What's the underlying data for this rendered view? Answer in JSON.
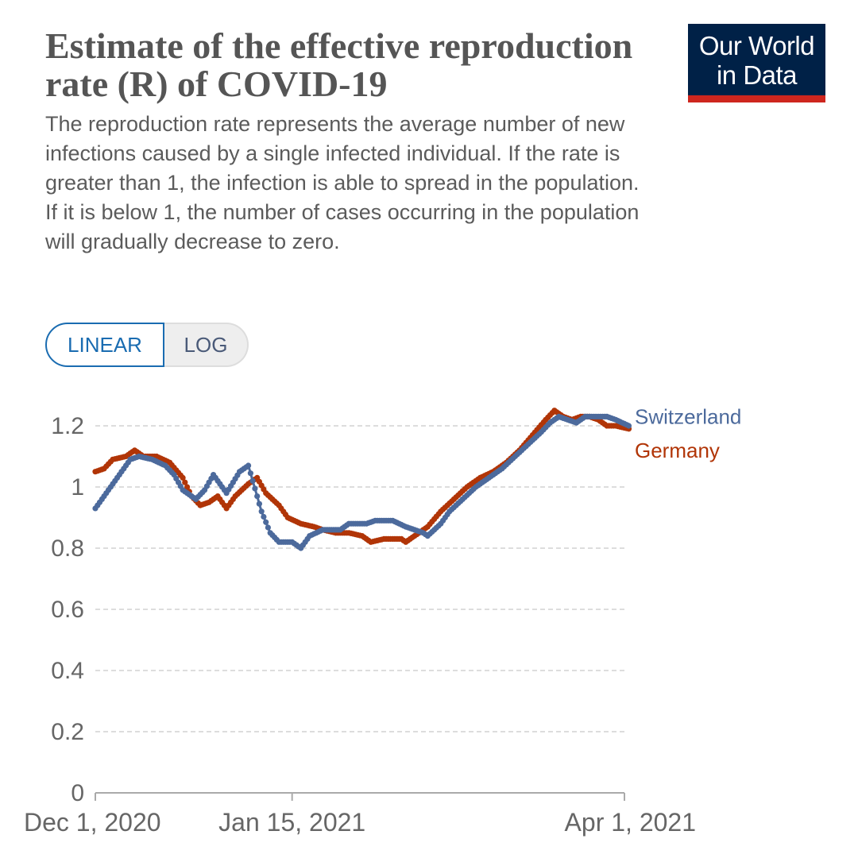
{
  "header": {
    "title": "Estimate of the effective reproduction rate (R) of COVID-19",
    "subtitle": "The reproduction rate represents the average number of new infections caused by a single infected individual. If the rate is greater than 1, the infection is able to spread in the population. If it is below 1, the number of cases occurring in the population will gradually decrease to zero."
  },
  "logo": {
    "line1": "Our World",
    "line2": "in Data"
  },
  "scale_toggle": {
    "linear_label": "LINEAR",
    "log_label": "LOG",
    "selected": "LINEAR"
  },
  "colors": {
    "switzerland": "#4c6a9c",
    "germany": "#b13507",
    "grid": "#dddddd",
    "axis": "#aaaaaa",
    "accent": "#1a6cb1"
  },
  "chart_data": {
    "type": "line",
    "title": "Estimate of the effective reproduction rate (R) of COVID-19",
    "xlabel": "",
    "ylabel": "",
    "ylim": [
      0,
      1.2
    ],
    "yticks": [
      0,
      0.2,
      0.4,
      0.6,
      0.8,
      1,
      1.2
    ],
    "ytick_labels": [
      "0",
      "0.2",
      "0.4",
      "0.6",
      "0.8",
      "1",
      "1.2"
    ],
    "xlim_days": [
      0,
      121
    ],
    "xticks": [
      {
        "day": 0,
        "label": "Dec 1, 2020"
      },
      {
        "day": 45,
        "label": "Jan 15, 2021"
      },
      {
        "day": 121,
        "label": "Apr 1, 2021"
      }
    ],
    "grid": true,
    "series": [
      {
        "name": "Switzerland",
        "label_y": 1.23,
        "points": [
          [
            0,
            0.93
          ],
          [
            2,
            0.97
          ],
          [
            5,
            1.03
          ],
          [
            8,
            1.09
          ],
          [
            10,
            1.1
          ],
          [
            13,
            1.09
          ],
          [
            16,
            1.07
          ],
          [
            18,
            1.04
          ],
          [
            20,
            0.99
          ],
          [
            23,
            0.96
          ],
          [
            25,
            0.99
          ],
          [
            27,
            1.04
          ],
          [
            29,
            1.0
          ],
          [
            30,
            0.98
          ],
          [
            33,
            1.05
          ],
          [
            35,
            1.07
          ],
          [
            36,
            1.02
          ],
          [
            38,
            0.92
          ],
          [
            40,
            0.85
          ],
          [
            42,
            0.82
          ],
          [
            45,
            0.82
          ],
          [
            47,
            0.8
          ],
          [
            49,
            0.84
          ],
          [
            52,
            0.86
          ],
          [
            56,
            0.86
          ],
          [
            58,
            0.88
          ],
          [
            62,
            0.88
          ],
          [
            64,
            0.89
          ],
          [
            68,
            0.89
          ],
          [
            71,
            0.87
          ],
          [
            73,
            0.86
          ],
          [
            75,
            0.85
          ],
          [
            76,
            0.84
          ],
          [
            79,
            0.88
          ],
          [
            81,
            0.92
          ],
          [
            84,
            0.96
          ],
          [
            87,
            1.0
          ],
          [
            90,
            1.03
          ],
          [
            93,
            1.06
          ],
          [
            96,
            1.1
          ],
          [
            99,
            1.14
          ],
          [
            102,
            1.18
          ],
          [
            104,
            1.21
          ],
          [
            106,
            1.23
          ],
          [
            108,
            1.22
          ],
          [
            110,
            1.21
          ],
          [
            112,
            1.23
          ],
          [
            114,
            1.23
          ],
          [
            117,
            1.23
          ],
          [
            119,
            1.22
          ],
          [
            122,
            1.2
          ]
        ]
      },
      {
        "name": "Germany",
        "label_y": 1.12,
        "points": [
          [
            0,
            1.05
          ],
          [
            2,
            1.06
          ],
          [
            4,
            1.09
          ],
          [
            7,
            1.1
          ],
          [
            9,
            1.12
          ],
          [
            11,
            1.1
          ],
          [
            14,
            1.1
          ],
          [
            17,
            1.08
          ],
          [
            20,
            1.03
          ],
          [
            22,
            0.97
          ],
          [
            24,
            0.94
          ],
          [
            26,
            0.95
          ],
          [
            28,
            0.97
          ],
          [
            30,
            0.93
          ],
          [
            32,
            0.97
          ],
          [
            35,
            1.01
          ],
          [
            37,
            1.03
          ],
          [
            39,
            0.98
          ],
          [
            42,
            0.94
          ],
          [
            44,
            0.9
          ],
          [
            47,
            0.88
          ],
          [
            50,
            0.87
          ],
          [
            52,
            0.86
          ],
          [
            55,
            0.85
          ],
          [
            58,
            0.85
          ],
          [
            61,
            0.84
          ],
          [
            63,
            0.82
          ],
          [
            66,
            0.83
          ],
          [
            70,
            0.83
          ],
          [
            71,
            0.82
          ],
          [
            73,
            0.84
          ],
          [
            76,
            0.87
          ],
          [
            79,
            0.92
          ],
          [
            82,
            0.96
          ],
          [
            85,
            1.0
          ],
          [
            88,
            1.03
          ],
          [
            91,
            1.05
          ],
          [
            94,
            1.08
          ],
          [
            97,
            1.12
          ],
          [
            100,
            1.17
          ],
          [
            103,
            1.22
          ],
          [
            105,
            1.25
          ],
          [
            107,
            1.23
          ],
          [
            109,
            1.22
          ],
          [
            111,
            1.23
          ],
          [
            113,
            1.23
          ],
          [
            115,
            1.22
          ],
          [
            117,
            1.2
          ],
          [
            119,
            1.2
          ],
          [
            122,
            1.19
          ]
        ]
      }
    ]
  }
}
